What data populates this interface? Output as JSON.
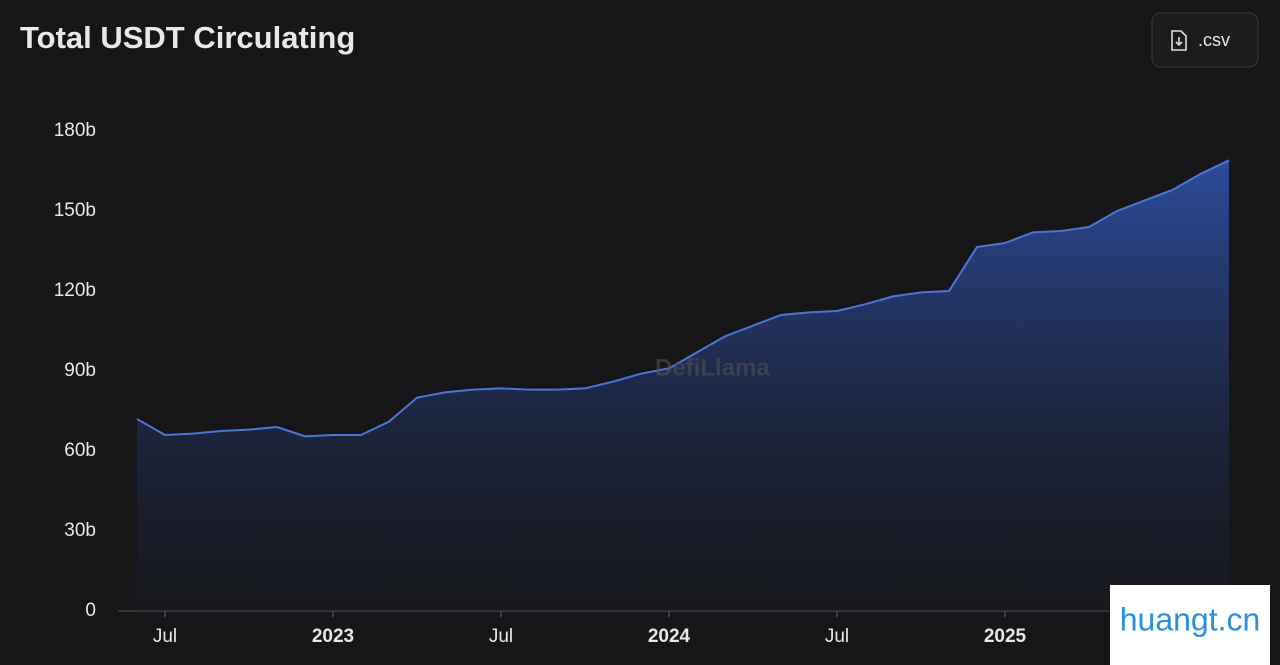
{
  "chart_data": {
    "type": "area",
    "title": "Total USDT Circulating",
    "button": ".csv",
    "watermark": "DefiLlama",
    "overlay": "huangt.cn",
    "color": "#4f74d6",
    "categories": [
      null,
      "Jul",
      null,
      null,
      null,
      null,
      null,
      "2023",
      null,
      null,
      null,
      null,
      null,
      "Jul",
      null,
      null,
      null,
      null,
      null,
      "2024",
      null,
      null,
      null,
      null,
      null,
      "Jul",
      null,
      null,
      null,
      null,
      null,
      "2025",
      null,
      null,
      null,
      null,
      null,
      null,
      null,
      null
    ],
    "values": [
      72,
      66,
      66.5,
      67.5,
      68,
      69,
      65.5,
      66,
      66,
      71,
      80,
      82,
      83,
      83.5,
      83,
      83,
      83.5,
      86,
      89,
      91,
      97,
      103,
      107,
      111,
      112,
      112.5,
      115,
      118,
      119.5,
      120,
      136.5,
      138,
      142,
      142.5,
      144,
      150,
      154,
      158,
      164,
      169
    ],
    "ylim": [
      0,
      180
    ],
    "yticks": [
      0,
      {
        "value": 30,
        "label": "30b"
      },
      {
        "value": 60,
        "label": "60b"
      },
      {
        "value": 90,
        "label": "90b"
      },
      {
        "value": 120,
        "label": "120b"
      },
      {
        "value": 150,
        "label": "150b"
      },
      {
        "value": 180,
        "label": "180b"
      }
    ]
  }
}
